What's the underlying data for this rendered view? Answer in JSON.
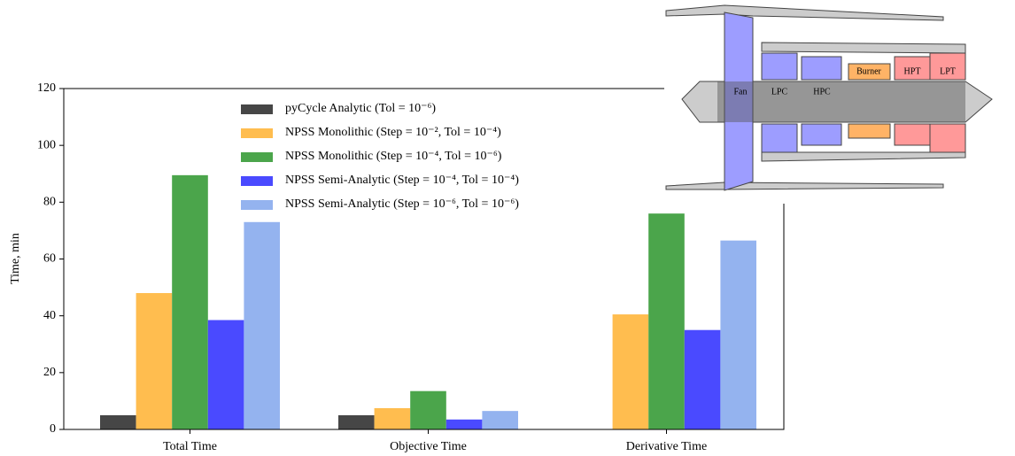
{
  "chart_data": {
    "type": "bar",
    "y_label": "Time, min",
    "categories": [
      "Total Time",
      "Objective Time",
      "Derivative Time"
    ],
    "series": [
      {
        "name": "pyCycle Analytic (Tol = 10⁻⁶)",
        "color": "#464646",
        "values": [
          5,
          5,
          null
        ]
      },
      {
        "name": "NPSS Monolithic (Step = 10⁻², Tol = 10⁻⁴)",
        "color": "#ffbd4f",
        "values": [
          48,
          7.5,
          40.5
        ]
      },
      {
        "name": "NPSS Monolithic (Step = 10⁻⁴, Tol = 10⁻⁶)",
        "color": "#4ba54b",
        "values": [
          89.5,
          13.5,
          76
        ]
      },
      {
        "name": "NPSS Semi-Analytic (Step = 10⁻⁴, Tol = 10⁻⁴)",
        "color": "#4a4aff",
        "values": [
          38.5,
          3.5,
          35
        ]
      },
      {
        "name": "NPSS Semi-Analytic (Step = 10⁻⁶, Tol = 10⁻⁶)",
        "color": "#94b3ef",
        "values": [
          73,
          6.5,
          66.5
        ]
      }
    ],
    "ylim": [
      0,
      120
    ],
    "yticks": [
      0,
      20,
      40,
      60,
      80,
      100,
      120
    ],
    "legend": "upper-left"
  },
  "diagram": {
    "labels": [
      "Fan",
      "LPC",
      "HPC",
      "Burner",
      "HPT",
      "LPT"
    ]
  }
}
